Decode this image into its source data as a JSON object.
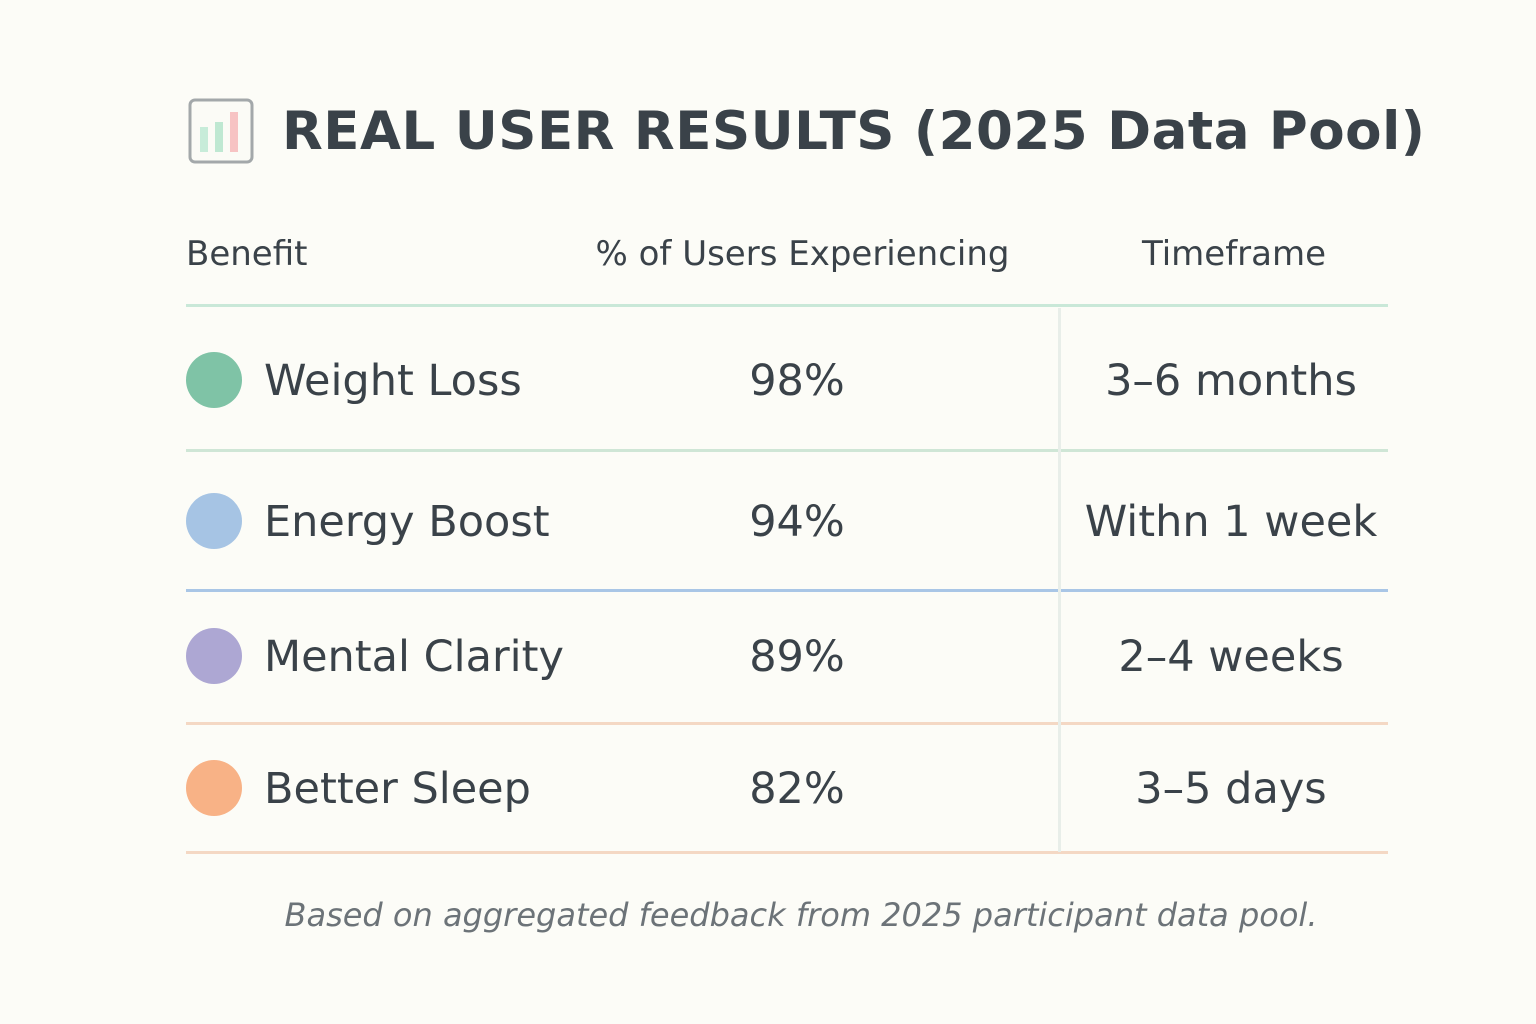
{
  "title": "REAL USER RESULTS (2025 Data Pool)",
  "icon": "bar-chart-icon",
  "headers": {
    "benefit": "Benefit",
    "percent": "% of Users Experiencing",
    "timeframe": "Timeframe"
  },
  "chart_data": {
    "type": "table",
    "columns": [
      "Benefit",
      "% of Users Experiencing",
      "Timeframe"
    ],
    "rows": [
      {
        "benefit": "Weight Loss",
        "percent": "98%",
        "value": 98,
        "timeframe": "3–6 months",
        "color": "#7fc3a6"
      },
      {
        "benefit": "Energy Boost",
        "percent": "94%",
        "value": 94,
        "timeframe": "Withn 1 week",
        "color": "#a6c4e4"
      },
      {
        "benefit": "Mental Clarity",
        "percent": "89%",
        "value": 89,
        "timeframe": "2–4 weeks",
        "color": "#ada7d3"
      },
      {
        "benefit": "Better Sleep",
        "percent": "82%",
        "value": 82,
        "timeframe": "3–5 days",
        "color": "#f8b286"
      }
    ]
  },
  "divider_colors": [
    "#c9e8d8",
    "#cfe6d6",
    "#a9c6e6",
    "#f4d8c4",
    "#f4d8c4"
  ],
  "footnote": "Based on aggregated feedback from 2025 participant data pool."
}
